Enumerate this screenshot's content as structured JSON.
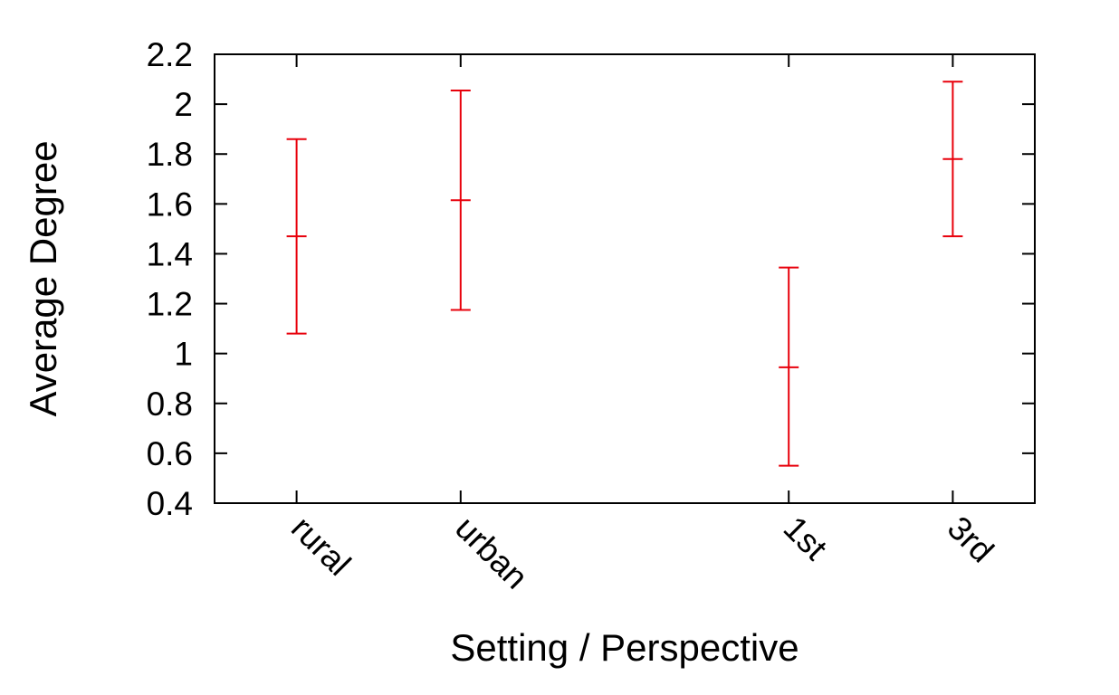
{
  "chart_data": {
    "type": "errorbar",
    "title": "",
    "xlabel": "Setting  /  Perspective",
    "ylabel": "Average Degree",
    "ylim": [
      0.4,
      2.2
    ],
    "yticks": [
      "0.4",
      "0.6",
      "0.8",
      "1",
      "1.2",
      "1.4",
      "1.6",
      "1.8",
      "2",
      "2.2"
    ],
    "xrange": [
      0.5,
      5.5
    ],
    "categories": [
      "rural",
      "urban",
      "1st",
      "3rd"
    ],
    "x": [
      1,
      2,
      4,
      5
    ],
    "values": [
      1.47,
      1.615,
      0.945,
      1.78
    ],
    "lower": [
      1.08,
      1.175,
      0.55,
      1.47
    ],
    "upper": [
      1.86,
      2.055,
      1.345,
      2.09
    ],
    "color": "#e8000b",
    "grid": false,
    "legend": "none"
  }
}
